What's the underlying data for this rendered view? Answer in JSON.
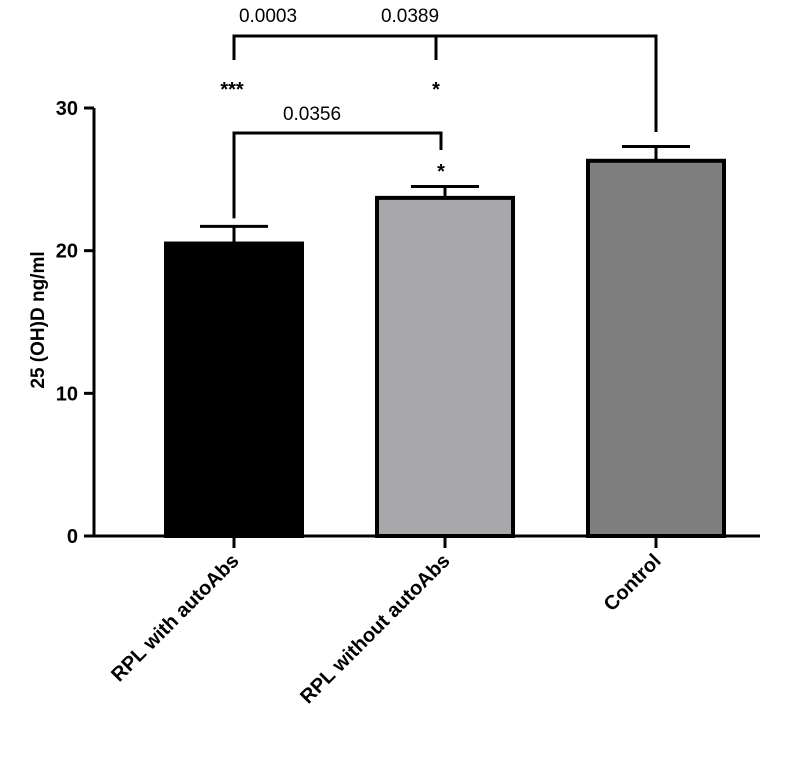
{
  "chart_data": {
    "type": "bar",
    "categories": [
      "RPL with autoAbs",
      "RPL without autoAbs",
      "Control"
    ],
    "values": [
      20.5,
      23.7,
      26.3
    ],
    "error": [
      1.2,
      0.8,
      1.0
    ],
    "colors": [
      "#000000",
      "#a8a8ab",
      "#7f7f7f"
    ],
    "ylabel": "25 (OH)D ng/ml",
    "ylim": [
      0,
      30
    ],
    "yticks": [
      0,
      10,
      20,
      30
    ],
    "grid": false,
    "comparisons": [
      {
        "from": 0,
        "to": 2,
        "p": "0.0003",
        "stars": "***"
      },
      {
        "from": 1,
        "to": 2,
        "p": "0.0389",
        "stars": "*"
      },
      {
        "from": 0,
        "to": 1,
        "p": "0.0356",
        "stars": "*"
      }
    ]
  }
}
